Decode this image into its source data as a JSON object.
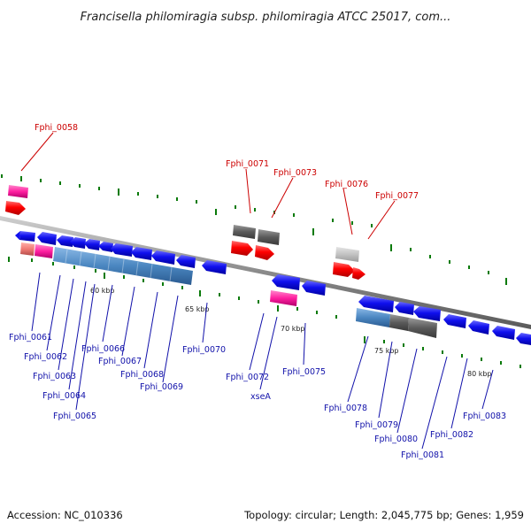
{
  "title": "Francisella philomiragia subsp. philomiragia ATCC 25017, com...",
  "footer": {
    "accession": "Accession: NC_010336",
    "summary": "Topology: circular; Length: 2,045,775 bp; Genes: 1,959"
  },
  "colors": {
    "forward_gene": "#ff0000",
    "reverse_gene": "#0000ee",
    "ncrna": "#ff22aa",
    "pseudo": "#555555",
    "operon": "#4a86c0",
    "tick": "#0a7a0a",
    "backbone": "#8a8a8a"
  },
  "scale_ticks": [
    "60 kbp",
    "65 kbp",
    "70 kbp",
    "75 kbp",
    "80 kbp"
  ],
  "red_labels": [
    "Fphi_0058",
    "Fphi_0071",
    "Fphi_0073",
    "Fphi_0076",
    "Fphi_0077"
  ],
  "blue_labels": [
    "Fphi_0061",
    "Fphi_0062",
    "Fphi_0063",
    "Fphi_0064",
    "Fphi_0065",
    "Fphi_0066",
    "Fphi_0067",
    "Fphi_0068",
    "Fphi_0069",
    "Fphi_0070",
    "Fphi_0072",
    "xseA",
    "Fphi_0075",
    "Fphi_0078",
    "Fphi_0079",
    "Fphi_0080",
    "Fphi_0081",
    "Fphi_0082",
    "Fphi_0083"
  ]
}
